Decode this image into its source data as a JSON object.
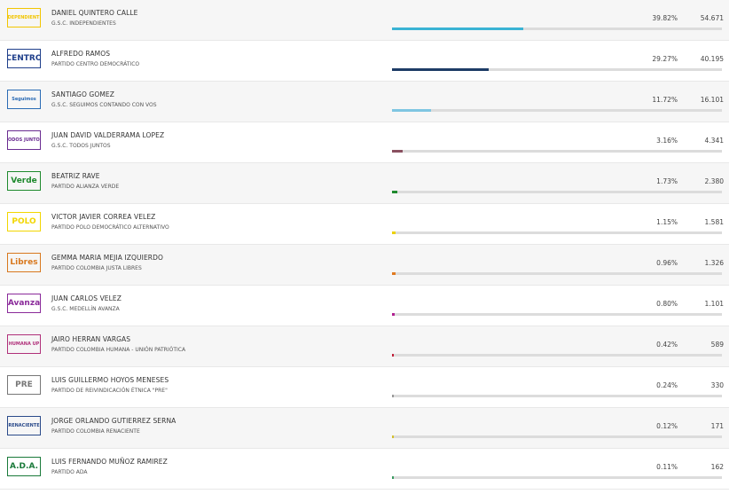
{
  "xlim": [
    0,
    100
  ],
  "rows": [
    {
      "logo": "INDEPENDIENTES",
      "logo_color": "#f2c500",
      "name": "DANIEL QUINTERO CALLE",
      "party": "G.S.C. INDEPENDIENTES",
      "percent": 39.82,
      "percent_label": "39.82%",
      "votes": "54.671",
      "color": "#3ab3d4"
    },
    {
      "logo": "CENTRO",
      "logo_color": "#1f3f8b",
      "name": "ALFREDO RAMOS",
      "party": "PARTIDO CENTRO DEMOCRÁTICO",
      "percent": 29.27,
      "percent_label": "29.27%",
      "votes": "40.195",
      "color": "#1d3c66"
    },
    {
      "logo": "Seguimos",
      "logo_color": "#2a6bb5",
      "name": "SANTIAGO GOMEZ",
      "party": "G.S.C. SEGUIMOS CONTANDO CON VOS",
      "percent": 11.72,
      "percent_label": "11.72%",
      "votes": "16.101",
      "color": "#7fc6e2"
    },
    {
      "logo": "TODOS JUNTOS",
      "logo_color": "#6a2c91",
      "name": "JUAN DAVID VALDERRAMA LOPEZ",
      "party": "G.S.C. TODOS JUNTOS",
      "percent": 3.16,
      "percent_label": "3.16%",
      "votes": "4.341",
      "color": "#8a5060"
    },
    {
      "logo": "Verde",
      "logo_color": "#1f8a2e",
      "name": "BEATRIZ RAVE",
      "party": "PARTIDO ALIANZA VERDE",
      "percent": 1.73,
      "percent_label": "1.73%",
      "votes": "2.380",
      "color": "#1f8a2e"
    },
    {
      "logo": "POLO",
      "logo_color": "#f2d600",
      "name": "VICTOR JAVIER CORREA VELEZ",
      "party": "PARTIDO POLO DEMOCRÁTICO ALTERNATIVO",
      "percent": 1.15,
      "percent_label": "1.15%",
      "votes": "1.581",
      "color": "#ecd200"
    },
    {
      "logo": "Libres",
      "logo_color": "#d8781e",
      "name": "GEMMA MARIA MEJIA IZQUIERDO",
      "party": "PARTIDO COLOMBIA JUSTA LIBRES",
      "percent": 0.96,
      "percent_label": "0.96%",
      "votes": "1.326",
      "color": "#e07a20"
    },
    {
      "logo": "Avanza",
      "logo_color": "#8a2a9a",
      "name": "JUAN CARLOS VELEZ",
      "party": "G.S.C. MEDELLÍN AVANZA",
      "percent": 0.8,
      "percent_label": "0.80%",
      "votes": "1.101",
      "color": "#b02090"
    },
    {
      "logo": "HUMANA UP",
      "logo_color": "#b0307a",
      "name": "JAIRO HERRAN VARGAS",
      "party": "PARTIDO COLOMBIA HUMANA - UNIÓN PATRIÓTICA",
      "percent": 0.42,
      "percent_label": "0.42%",
      "votes": "589",
      "color": "#c0203a"
    },
    {
      "logo": "PRE",
      "logo_color": "#777777",
      "name": "LUIS GUILLERMO HOYOS MENESES",
      "party": "PARTIDO DE REIVINDICACIÓN ÉTNICA \"PRE\"",
      "percent": 0.24,
      "percent_label": "0.24%",
      "votes": "330",
      "color": "#999999"
    },
    {
      "logo": "RENACIENTE",
      "logo_color": "#2a4a8a",
      "name": "JORGE ORLANDO GUTIERREZ SERNA",
      "party": "PARTIDO COLOMBIA RENACIENTE",
      "percent": 0.12,
      "percent_label": "0.12%",
      "votes": "171",
      "color": "#d4c030"
    },
    {
      "logo": "A.D.A.",
      "logo_color": "#1a7a3a",
      "name": "LUIS FERNANDO MUÑOZ RAMIREZ",
      "party": "PARTIDO ADA",
      "percent": 0.11,
      "percent_label": "0.11%",
      "votes": "162",
      "color": "#3a9a60"
    }
  ]
}
